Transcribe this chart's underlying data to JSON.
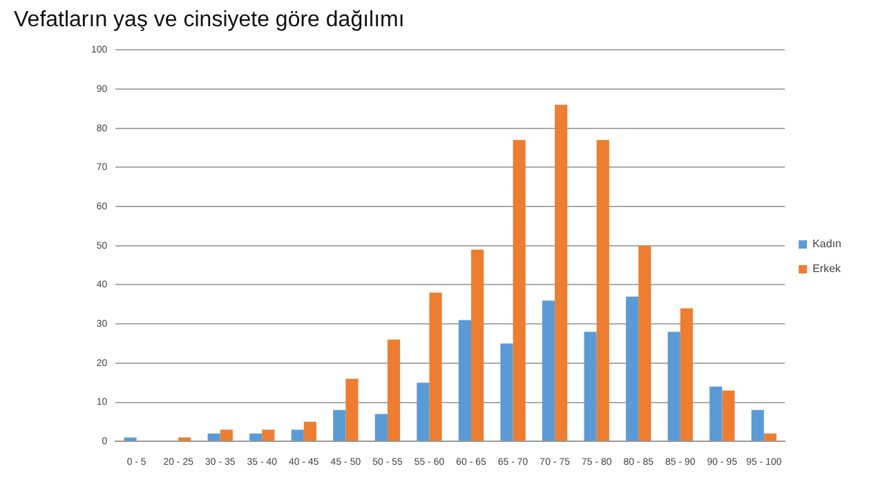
{
  "chart_data": {
    "type": "bar",
    "title": "Vefatların yaş ve cinsiyete göre dağılımı",
    "categories": [
      "0 - 5",
      "20 - 25",
      "30 - 35",
      "35 - 40",
      "40 - 45",
      "45 - 50",
      "50 - 55",
      "55 - 60",
      "60 - 65",
      "65 - 70",
      "70 - 75",
      "75 - 80",
      "80 - 85",
      "85 - 90",
      "90 - 95",
      "95 - 100"
    ],
    "series": [
      {
        "name": "Kadın",
        "color": "#5b9bd5",
        "values": [
          1,
          0,
          2,
          2,
          3,
          8,
          7,
          15,
          31,
          25,
          36,
          28,
          37,
          28,
          14,
          8
        ]
      },
      {
        "name": "Erkek",
        "color": "#ed7d31",
        "values": [
          0,
          1,
          3,
          3,
          5,
          16,
          26,
          38,
          49,
          77,
          86,
          77,
          50,
          34,
          13,
          2
        ]
      }
    ],
    "ylim": [
      0,
      100
    ],
    "yticks": [
      0,
      10,
      20,
      30,
      40,
      50,
      60,
      70,
      80,
      90,
      100
    ],
    "grid": "y",
    "legend": "right"
  }
}
